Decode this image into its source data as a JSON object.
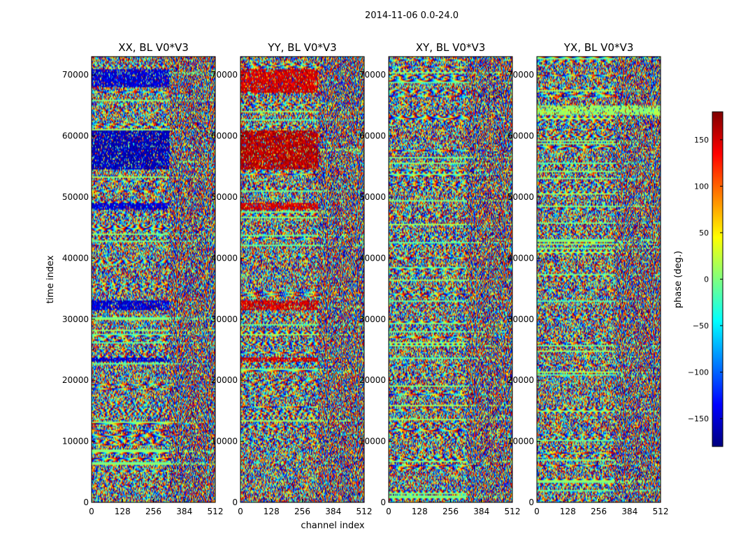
{
  "figure": {
    "suptitle": "2014-11-06 0.0-24.0",
    "ylabel": "time index",
    "xlabel": "channel index"
  },
  "colorbar": {
    "label": "phase (deg.)",
    "range": [
      -180,
      180
    ],
    "ticks": [
      150,
      100,
      50,
      0,
      -50,
      -100,
      -150
    ],
    "tick_labels": [
      "150",
      "100",
      "50",
      "0",
      "−50",
      "−100",
      "−150"
    ],
    "colormap": [
      "#00007f",
      "#0000ff",
      "#007fff",
      "#00ffff",
      "#7fff7f",
      "#ffff00",
      "#ff7f00",
      "#ff0000",
      "#7f0000"
    ]
  },
  "chart_data": [
    {
      "type": "heatmap",
      "title": "XX, BL V0*V3",
      "xlim": [
        0,
        512
      ],
      "ylim": [
        0,
        73000
      ],
      "xticks": [
        0,
        128,
        256,
        384,
        512
      ],
      "yticks": [
        0,
        10000,
        20000,
        30000,
        40000,
        50000,
        60000,
        70000
      ],
      "value": "phase (deg.)",
      "dominant_phase_bands": [
        {
          "t_from": 68000,
          "t_to": 71000,
          "ch_to": 320,
          "phase": -150
        },
        {
          "t_from": 54500,
          "t_to": 61000,
          "ch_to": 320,
          "phase": -160
        },
        {
          "t_from": 48000,
          "t_to": 49000,
          "ch_to": 320,
          "phase": -150
        },
        {
          "t_from": 31500,
          "t_to": 33000,
          "ch_to": 320,
          "phase": -150
        },
        {
          "t_from": 23000,
          "t_to": 23800,
          "ch_to": 320,
          "phase": -150
        }
      ]
    },
    {
      "type": "heatmap",
      "title": "YY, BL V0*V3",
      "xlim": [
        0,
        512
      ],
      "ylim": [
        0,
        73000
      ],
      "xticks": [
        0,
        128,
        256,
        384,
        512
      ],
      "yticks": [
        0,
        10000,
        20000,
        30000,
        40000,
        50000,
        60000,
        70000
      ],
      "value": "phase (deg.)",
      "dominant_phase_bands": [
        {
          "t_from": 67000,
          "t_to": 71000,
          "ch_to": 320,
          "phase": 150
        },
        {
          "t_from": 54500,
          "t_to": 61000,
          "ch_to": 320,
          "phase": 160
        },
        {
          "t_from": 48000,
          "t_to": 49000,
          "ch_to": 320,
          "phase": 150
        },
        {
          "t_from": 31500,
          "t_to": 33000,
          "ch_to": 320,
          "phase": 150
        },
        {
          "t_from": 23000,
          "t_to": 23800,
          "ch_to": 320,
          "phase": 150
        }
      ]
    },
    {
      "type": "heatmap",
      "title": "XY, BL V0*V3",
      "xlim": [
        0,
        512
      ],
      "ylim": [
        0,
        73000
      ],
      "xticks": [
        0,
        128,
        256,
        384,
        512
      ],
      "yticks": [
        0,
        10000,
        20000,
        30000,
        40000,
        50000,
        60000,
        70000
      ],
      "value": "phase (deg.)",
      "dominant_phase_bands": []
    },
    {
      "type": "heatmap",
      "title": "YX, BL V0*V3",
      "xlim": [
        0,
        512
      ],
      "ylim": [
        0,
        73000
      ],
      "xticks": [
        0,
        128,
        256,
        384,
        512
      ],
      "yticks": [
        0,
        10000,
        20000,
        30000,
        40000,
        50000,
        60000,
        70000
      ],
      "value": "phase (deg.)",
      "dominant_phase_bands": [
        {
          "t_from": 63500,
          "t_to": 65000,
          "ch_to": 512,
          "phase": 10
        }
      ]
    }
  ]
}
